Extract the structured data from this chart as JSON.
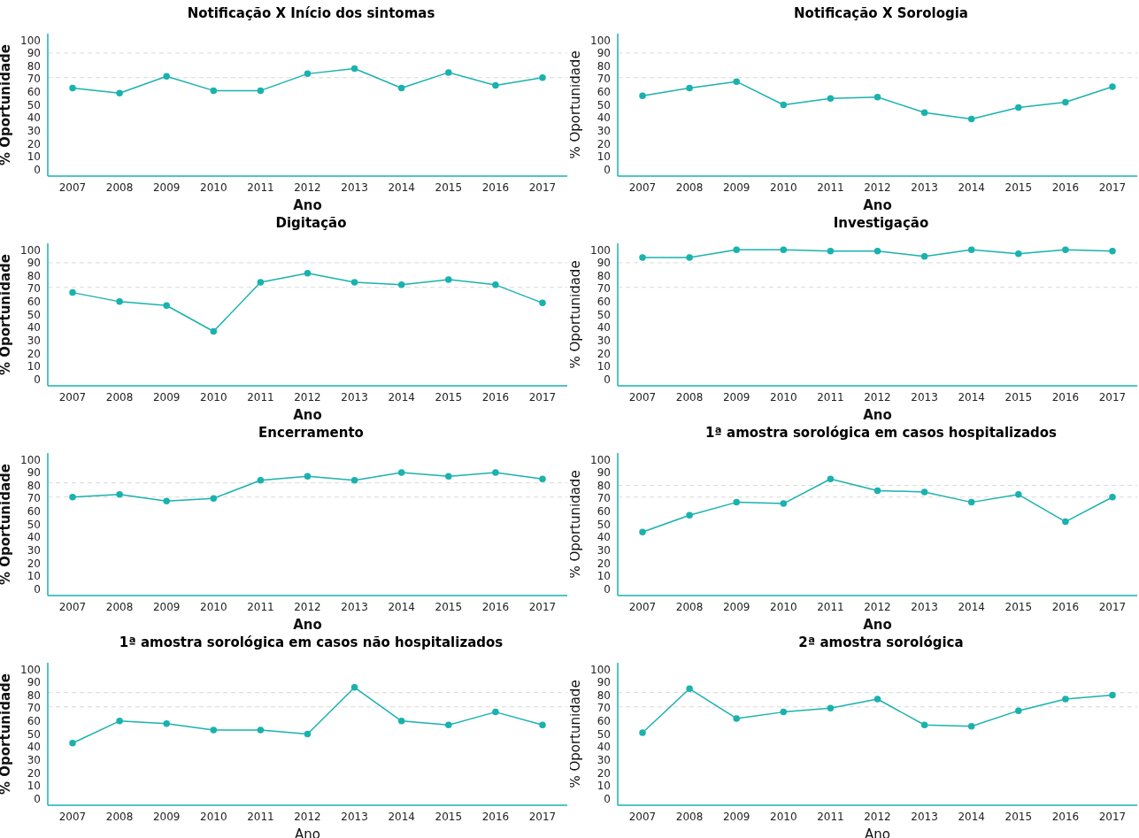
{
  "chart_data": [
    {
      "type": "line",
      "title": "Notificação X Início dos sintomas",
      "xlabel": "Ano",
      "ylabel": "% Oportunidade",
      "categories": [
        "2007",
        "2008",
        "2009",
        "2010",
        "2011",
        "2012",
        "2013",
        "2014",
        "2015",
        "2016",
        "2017"
      ],
      "series": [
        {
          "color": "#1ab2ae",
          "values": [
            63,
            59,
            72,
            61,
            61,
            74,
            78,
            63,
            75,
            65,
            71
          ]
        }
      ],
      "ylim": [
        -5,
        105
      ],
      "yticks": [
        0,
        10,
        20,
        30,
        40,
        50,
        60,
        70,
        80,
        90,
        100
      ],
      "marker": "circle",
      "line_style": "solid",
      "ref_lines": [
        {
          "axis": "y",
          "value": 90,
          "color": "#d9d9d9",
          "line_style": "dashed"
        },
        {
          "axis": "y",
          "value": 71,
          "color": "#d9d9d9",
          "line_style": "dashed"
        }
      ]
    },
    {
      "type": "line",
      "title": "Notificação X Sorologia",
      "xlabel": "Ano",
      "ylabel": "% Oportunidade",
      "categories": [
        "2007",
        "2008",
        "2009",
        "2010",
        "2011",
        "2012",
        "2013",
        "2014",
        "2015",
        "2016",
        "2017"
      ],
      "series": [
        {
          "color": "#1ab2ae",
          "values": [
            57,
            63,
            68,
            50,
            55,
            56,
            44,
            39,
            48,
            52,
            64
          ]
        }
      ],
      "ylim": [
        -5,
        105
      ],
      "yticks": [
        0,
        10,
        20,
        30,
        40,
        50,
        60,
        70,
        80,
        90,
        100
      ],
      "marker": "circle",
      "line_style": "solid",
      "ref_lines": [
        {
          "axis": "y",
          "value": 90,
          "color": "#d9d9d9",
          "line_style": "dashed"
        },
        {
          "axis": "y",
          "value": 71,
          "color": "#d9d9d9",
          "line_style": "dashed"
        }
      ]
    },
    {
      "type": "line",
      "title": "Digitação",
      "xlabel": "Ano",
      "ylabel": "% Oportunidade",
      "categories": [
        "2007",
        "2008",
        "2009",
        "2010",
        "2011",
        "2012",
        "2013",
        "2014",
        "2015",
        "2016",
        "2017"
      ],
      "series": [
        {
          "color": "#1ab2ae",
          "values": [
            67,
            60,
            57,
            37,
            75,
            82,
            75,
            73,
            77,
            73,
            59
          ]
        }
      ],
      "ylim": [
        -5,
        105
      ],
      "yticks": [
        0,
        10,
        20,
        30,
        40,
        50,
        60,
        70,
        80,
        90,
        100
      ],
      "marker": "circle",
      "line_style": "solid",
      "ref_lines": [
        {
          "axis": "y",
          "value": 90,
          "color": "#d9d9d9",
          "line_style": "dashed"
        },
        {
          "axis": "y",
          "value": 71,
          "color": "#d9d9d9",
          "line_style": "dashed"
        }
      ]
    },
    {
      "type": "line",
      "title": "Investigação",
      "xlabel": "Ano",
      "ylabel": "% Oportunidade",
      "categories": [
        "2007",
        "2008",
        "2009",
        "2010",
        "2011",
        "2012",
        "2013",
        "2014",
        "2015",
        "2016",
        "2017"
      ],
      "series": [
        {
          "color": "#1ab2ae",
          "values": [
            94,
            94,
            100,
            100,
            99,
            99,
            95,
            100,
            97,
            100,
            99
          ]
        }
      ],
      "ylim": [
        -5,
        105
      ],
      "yticks": [
        0,
        10,
        20,
        30,
        40,
        50,
        60,
        70,
        80,
        90,
        100
      ],
      "marker": "circle",
      "line_style": "solid",
      "ref_lines": [
        {
          "axis": "y",
          "value": 90,
          "color": "#d9d9d9",
          "line_style": "dashed"
        },
        {
          "axis": "y",
          "value": 71,
          "color": "#d9d9d9",
          "line_style": "dashed"
        }
      ]
    },
    {
      "type": "line",
      "title": "Encerramento",
      "xlabel": "Ano",
      "ylabel": "% Oportunidade",
      "categories": [
        "2007",
        "2008",
        "2009",
        "2010",
        "2011",
        "2012",
        "2013",
        "2014",
        "2015",
        "2016",
        "2017"
      ],
      "series": [
        {
          "color": "#1ab2ae",
          "values": [
            71,
            73,
            68,
            70,
            84,
            87,
            84,
            90,
            87,
            90,
            85
          ]
        }
      ],
      "ylim": [
        -5,
        105
      ],
      "yticks": [
        0,
        10,
        20,
        30,
        40,
        50,
        60,
        70,
        80,
        90,
        100
      ],
      "marker": "circle",
      "line_style": "solid",
      "ref_lines": [
        {
          "axis": "y",
          "value": 82,
          "color": "#d9d9d9",
          "line_style": "dashed"
        },
        {
          "axis": "y",
          "value": 71,
          "color": "#d9d9d9",
          "line_style": "dashed"
        }
      ]
    },
    {
      "type": "line",
      "title": "1ª amostra sorológica em casos hospitalizados",
      "xlabel": "Ano",
      "ylabel": "% Oportunidade",
      "categories": [
        "2007",
        "2008",
        "2009",
        "2010",
        "2011",
        "2012",
        "2013",
        "2014",
        "2015",
        "2016",
        "2017"
      ],
      "series": [
        {
          "color": "#1ab2ae",
          "values": [
            44,
            57,
            67,
            66,
            85,
            76,
            75,
            67,
            73,
            52,
            71
          ]
        }
      ],
      "ylim": [
        -5,
        105
      ],
      "yticks": [
        0,
        10,
        20,
        30,
        40,
        50,
        60,
        70,
        80,
        90,
        100
      ],
      "marker": "circle",
      "line_style": "solid",
      "ref_lines": [
        {
          "axis": "y",
          "value": 80,
          "color": "#d9d9d9",
          "line_style": "dashed"
        },
        {
          "axis": "y",
          "value": 71,
          "color": "#d9d9d9",
          "line_style": "dashed"
        }
      ]
    },
    {
      "type": "line",
      "title": "1ª amostra sorológica em casos não hospitalizados",
      "xlabel": "Ano",
      "ylabel": "% Oportunidade",
      "categories": [
        "2007",
        "2008",
        "2009",
        "2010",
        "2011",
        "2012",
        "2013",
        "2014",
        "2015",
        "2016",
        "2017"
      ],
      "series": [
        {
          "color": "#1ab2ae",
          "values": [
            43,
            60,
            58,
            53,
            53,
            50,
            86,
            60,
            57,
            67,
            57
          ]
        }
      ],
      "ylim": [
        -5,
        105
      ],
      "yticks": [
        0,
        10,
        20,
        30,
        40,
        50,
        60,
        70,
        80,
        90,
        100
      ],
      "marker": "circle",
      "line_style": "solid",
      "ref_lines": [
        {
          "axis": "y",
          "value": 82,
          "color": "#d9d9d9",
          "line_style": "dashed"
        },
        {
          "axis": "y",
          "value": 71,
          "color": "#d9d9d9",
          "line_style": "dashed"
        }
      ]
    },
    {
      "type": "line",
      "title": "2ª amostra sorológica",
      "xlabel": "Ano",
      "ylabel": "% Oportunidade",
      "categories": [
        "2007",
        "2008",
        "2009",
        "2010",
        "2011",
        "2012",
        "2013",
        "2014",
        "2015",
        "2016",
        "2017"
      ],
      "series": [
        {
          "color": "#1ab2ae",
          "values": [
            51,
            85,
            62,
            67,
            70,
            77,
            57,
            56,
            68,
            77,
            80
          ]
        }
      ],
      "ylim": [
        -5,
        105
      ],
      "yticks": [
        0,
        10,
        20,
        30,
        40,
        50,
        60,
        70,
        80,
        90,
        100
      ],
      "marker": "circle",
      "line_style": "solid",
      "ref_lines": [
        {
          "axis": "y",
          "value": 82,
          "color": "#d9d9d9",
          "line_style": "dashed"
        },
        {
          "axis": "y",
          "value": 71,
          "color": "#d9d9d9",
          "line_style": "dashed"
        }
      ]
    }
  ]
}
